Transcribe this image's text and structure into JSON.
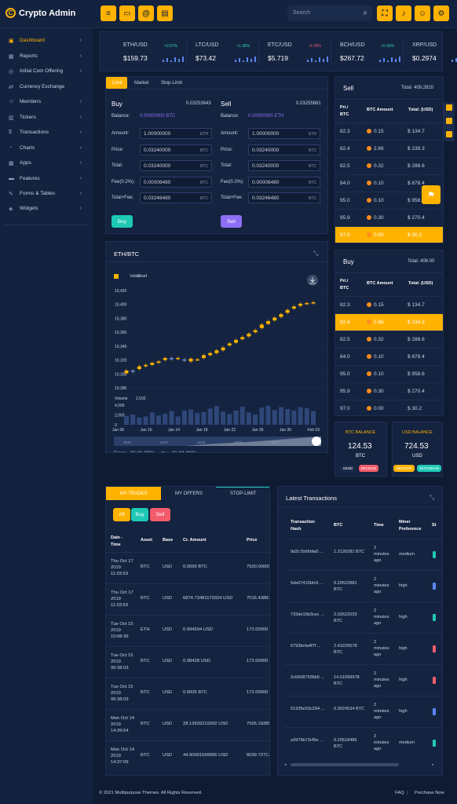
{
  "app": {
    "title": "Crypto Admin"
  },
  "search": {
    "placeholder": "Search"
  },
  "sidebar": {
    "items": [
      {
        "label": "Dashboard"
      },
      {
        "label": "Reports"
      },
      {
        "label": "Initial Coin Offering"
      },
      {
        "label": "Currency Exchange"
      },
      {
        "label": "Members"
      },
      {
        "label": "Tickers"
      },
      {
        "label": "Transactions"
      },
      {
        "label": "Charts"
      },
      {
        "label": "Apps"
      },
      {
        "label": "Features"
      },
      {
        "label": "Forms & Tables"
      },
      {
        "label": "Widgets"
      }
    ]
  },
  "tickers": [
    {
      "symbol": "ETH/USD",
      "change": "+0.57%",
      "price": "$159.73"
    },
    {
      "symbol": "LTC/USD",
      "change": "+1.38%",
      "price": "$73.42"
    },
    {
      "symbol": "ETC/USD",
      "change": "-0.19%",
      "price": "$5.719"
    },
    {
      "symbol": "BCH/USD",
      "change": "+0.43%",
      "price": "$267.72"
    },
    {
      "symbol": "XRP/USD",
      "change": "",
      "price": "$0.2974"
    }
  ],
  "order": {
    "tabs": [
      "Limit",
      "Market",
      "Stop-Limit"
    ],
    "buy": {
      "title": "Buy",
      "balance_num": "0.03253643",
      "balance_label": "Balance:",
      "balance_value": "0.00000000 BTC",
      "fields": [
        {
          "label": "Amount:",
          "value": "1.00000000",
          "unit": "ETH"
        },
        {
          "label": "Price:",
          "value": "0.03240000",
          "unit": "BTC"
        },
        {
          "label": "Total:",
          "value": "0.03240000",
          "unit": "BTC"
        },
        {
          "label": "Fee(0.2%):",
          "value": "0.00006480",
          "unit": "BTC"
        },
        {
          "label": "Total+Fee:",
          "value": "0.03246480",
          "unit": "BTC"
        }
      ],
      "button": "Buy"
    },
    "sell": {
      "title": "Sell",
      "balance_num": "0.03255681",
      "balance_label": "Balance:",
      "balance_value": "0.00000000 ETH",
      "fields": [
        {
          "label": "Amount:",
          "value": "1.00000000",
          "unit": "ETH"
        },
        {
          "label": "Price:",
          "value": "0.03240000",
          "unit": "BTC"
        },
        {
          "label": "Total:",
          "value": "0.03240000",
          "unit": "BTC"
        },
        {
          "label": "Fee(0.2%):",
          "value": "0.00006480",
          "unit": "BTC"
        },
        {
          "label": "Total+Fee:",
          "value": "0.03246480",
          "unit": "BTC"
        }
      ],
      "button": "Sell"
    }
  },
  "sell_book": {
    "title": "Sell",
    "total": "Total: 409.2820",
    "headers": [
      "Pri./ BTC",
      "BTC Amount",
      "Total: (USD)"
    ],
    "rows": [
      {
        "price": "82.3",
        "amount": "0.15",
        "total": "$ 134.7"
      },
      {
        "price": "82.4",
        "amount": "2.66",
        "total": "$ 238.3"
      },
      {
        "price": "82.5",
        "amount": "0.32",
        "total": "$ 288.6"
      },
      {
        "price": "84.0",
        "amount": "0.10",
        "total": "$ 878.4"
      },
      {
        "price": "95.0",
        "amount": "0.10",
        "total": "$ 958.6"
      },
      {
        "price": "95.9",
        "amount": "0.30",
        "total": "$ 270.4"
      },
      {
        "price": "97.0",
        "amount": "0.00",
        "total": "$ 30.2"
      }
    ]
  },
  "buy_book": {
    "title": "Buy",
    "total": "Total: 406.00",
    "headers": [
      "Pri./ BTC",
      "BTC Amount",
      "Total: (USD)"
    ],
    "rows": [
      {
        "price": "82.3",
        "amount": "0.15",
        "total": "$ 134.7"
      },
      {
        "price": "82.4",
        "amount": "2.66",
        "total": "$ 234.3"
      },
      {
        "price": "82.5",
        "amount": "0.32",
        "total": "$ 288.6"
      },
      {
        "price": "84.0",
        "amount": "0.10",
        "total": "$ 878.4"
      },
      {
        "price": "95.0",
        "amount": "0.10",
        "total": "$ 958.6"
      },
      {
        "price": "95.9",
        "amount": "0.30",
        "total": "$ 270.4"
      },
      {
        "price": "97.0",
        "amount": "0.00",
        "total": "$ 30.2"
      }
    ]
  },
  "btc_balance": {
    "title": "BTC BALANCE",
    "value": "124.53",
    "unit": "BTC",
    "send": "SEND",
    "receive": "RECEIVE"
  },
  "usd_balance": {
    "title": "USD BALANCE",
    "value": "724.53",
    "unit": "USD",
    "deposit": "DEPOSIT",
    "withdraw": "WITHDRAW"
  },
  "chart_card": {
    "title": "ETH/BTC",
    "from_label": "From:",
    "from": "06-01-2021",
    "to_label": "to:",
    "to": "06-02-2021"
  },
  "chart_data": {
    "type": "candlestick",
    "legend": [
      "Value",
      "Chart"
    ],
    "y_ticks": [
      "10,420",
      "10,400",
      "10,380",
      "10,360",
      "10,340",
      "10,320",
      "10,300",
      "10,280"
    ],
    "ylim": [
      10280,
      10420
    ],
    "x_ticks": [
      "Jan 06",
      "Jan 10",
      "Jan 14",
      "Jan 18",
      "Jan 22",
      "Jan 26",
      "Jan 30",
      "Feb 03"
    ],
    "candles": [
      {
        "o": 10301,
        "c": 10305
      },
      {
        "o": 10305,
        "c": 10303
      },
      {
        "o": 10307,
        "c": 10311
      },
      {
        "o": 10311,
        "c": 10313
      },
      {
        "o": 10313,
        "c": 10316
      },
      {
        "o": 10316,
        "c": 10318
      },
      {
        "o": 10320,
        "c": 10323
      },
      {
        "o": 10323,
        "c": 10321
      },
      {
        "o": 10322,
        "c": 10323
      },
      {
        "o": 10321,
        "c": 10319
      },
      {
        "o": 10318,
        "c": 10322
      },
      {
        "o": 10321,
        "c": 10321
      },
      {
        "o": 10323,
        "c": 10327
      },
      {
        "o": 10327,
        "c": 10330
      },
      {
        "o": 10330,
        "c": 10334
      },
      {
        "o": 10334,
        "c": 10338
      },
      {
        "o": 10341,
        "c": 10344
      },
      {
        "o": 10345,
        "c": 10349
      },
      {
        "o": 10350,
        "c": 10353
      },
      {
        "o": 10354,
        "c": 10358
      },
      {
        "o": 10360,
        "c": 10363
      },
      {
        "o": 10366,
        "c": 10371
      },
      {
        "o": 10372,
        "c": 10376
      },
      {
        "o": 10377,
        "c": 10381
      },
      {
        "o": 10382,
        "c": 10386
      },
      {
        "o": 10388,
        "c": 10392
      },
      {
        "o": 10394,
        "c": 10397
      },
      {
        "o": 10398,
        "c": 10401
      },
      {
        "o": 10401,
        "c": 10402
      },
      {
        "o": 10402,
        "c": 10403
      }
    ],
    "volume_label": "Volume",
    "volume_value": "2,592",
    "volume_ticks": [
      "4,000",
      "2,000",
      "0"
    ],
    "volume": [
      1800,
      2100,
      1500,
      1700,
      2500,
      1900,
      2300,
      2800,
      1700,
      2900,
      3100,
      2400,
      2600,
      3300,
      3800,
      2700,
      2200,
      2900,
      3700,
      2500,
      2100,
      3500,
      3900,
      3000,
      3600,
      3200,
      2900,
      3600,
      3400,
      2800
    ],
    "navigator_labels": [
      "2016",
      "2017",
      "2018",
      "2019",
      "2020"
    ]
  },
  "trades": {
    "tabs": [
      "MY TRADES",
      "MY OFFERS",
      "STOP-LIMIT"
    ],
    "filters": [
      "All",
      "Buy",
      "Sell"
    ],
    "headers": [
      "Date - Time",
      "Asset",
      "Base",
      "Cr. Amount",
      "Price"
    ],
    "rows": [
      {
        "date": "Thu Oct 17 2019 11:03:53",
        "asset": "BTC",
        "base": "USD",
        "amount": "0.0099 BTC",
        "price": "7500.00000"
      },
      {
        "date": "Thu Oct 17 2019 11:03:53",
        "asset": "BTC",
        "base": "USD",
        "amount": "6874.73481179324 USD",
        "price": "7016.43887"
      },
      {
        "date": "Tue Oct 15 2019 10:08:36",
        "asset": "ETH",
        "base": "USD",
        "amount": "0.994504 USD",
        "price": "172.00000"
      },
      {
        "date": "Tue Oct 15 2019 06:38:03",
        "asset": "BTC",
        "base": "USD",
        "amount": "0.08428 USD",
        "price": "172.00000"
      },
      {
        "date": "Tue Oct 15 2019 06:38:03",
        "asset": "BTC",
        "base": "USD",
        "amount": "0.0005 BTC",
        "price": "172.00000"
      },
      {
        "date": "Mon Oct 14 2019 14:39:54",
        "asset": "BTC",
        "base": "USD",
        "amount": "28.13926219202 USD",
        "price": "7556.19285"
      },
      {
        "date": "Mon Oct 14 2019 14:37:09",
        "asset": "BTC",
        "base": "USD",
        "amount": "44.90991599955 USD",
        "price": "8039.72717"
      }
    ]
  },
  "latest_tx": {
    "title": "Latest Transactions",
    "headers": [
      "Transaction Hash",
      "BTC",
      "Time",
      "Miner Preference",
      "St"
    ],
    "rows": [
      {
        "hash": "9d2c7b06bfa0 ...",
        "btc": "1.2126281 BTC",
        "time": "2 minutes ago",
        "pref": "medium",
        "status_color": "#1ec9b5"
      },
      {
        "hash": "5de67415bfc6 ...",
        "btc": "0.20522881 BTC",
        "time": "2 minutes ago",
        "pref": "high",
        "status_color": "#5b86f5"
      },
      {
        "hash": "733de15b3cec ...",
        "btc": "2.02622033 BTC",
        "time": "2 minutes ago",
        "pref": "high",
        "status_color": "#1ec9b5"
      },
      {
        "hash": "6793bcfa4f7f ...",
        "btc": "2.43220578 BTC",
        "time": "2 minutes ago",
        "pref": "high",
        "status_color": "#f25c6b"
      },
      {
        "hash": "2c66087936b5 ...",
        "btc": "14.01099978 BTC",
        "time": "2 minutes ago",
        "pref": "high",
        "status_color": "#f25c6b"
      },
      {
        "hash": "51935e53c294 ...",
        "btc": "0.3024534 BTC",
        "time": "2 minutes ago",
        "pref": "high",
        "status_color": "#5b86f5"
      },
      {
        "hash": "a3976b73cf5e ...",
        "btc": "0.20518486 BTC",
        "time": "2 minutes ago",
        "pref": "medium",
        "status_color": "#1ec9b5"
      }
    ]
  },
  "footer": {
    "copyright": "© 2021 Multipurpose Themes. All Rights Reserved.",
    "faq": "FAQ",
    "purchase": "Purchase Now"
  },
  "colors": {
    "accent": "#ffb300",
    "bg": "#0f1b33",
    "card": "#142340",
    "positive": "#2ed1b4",
    "negative": "#f25c6b"
  }
}
